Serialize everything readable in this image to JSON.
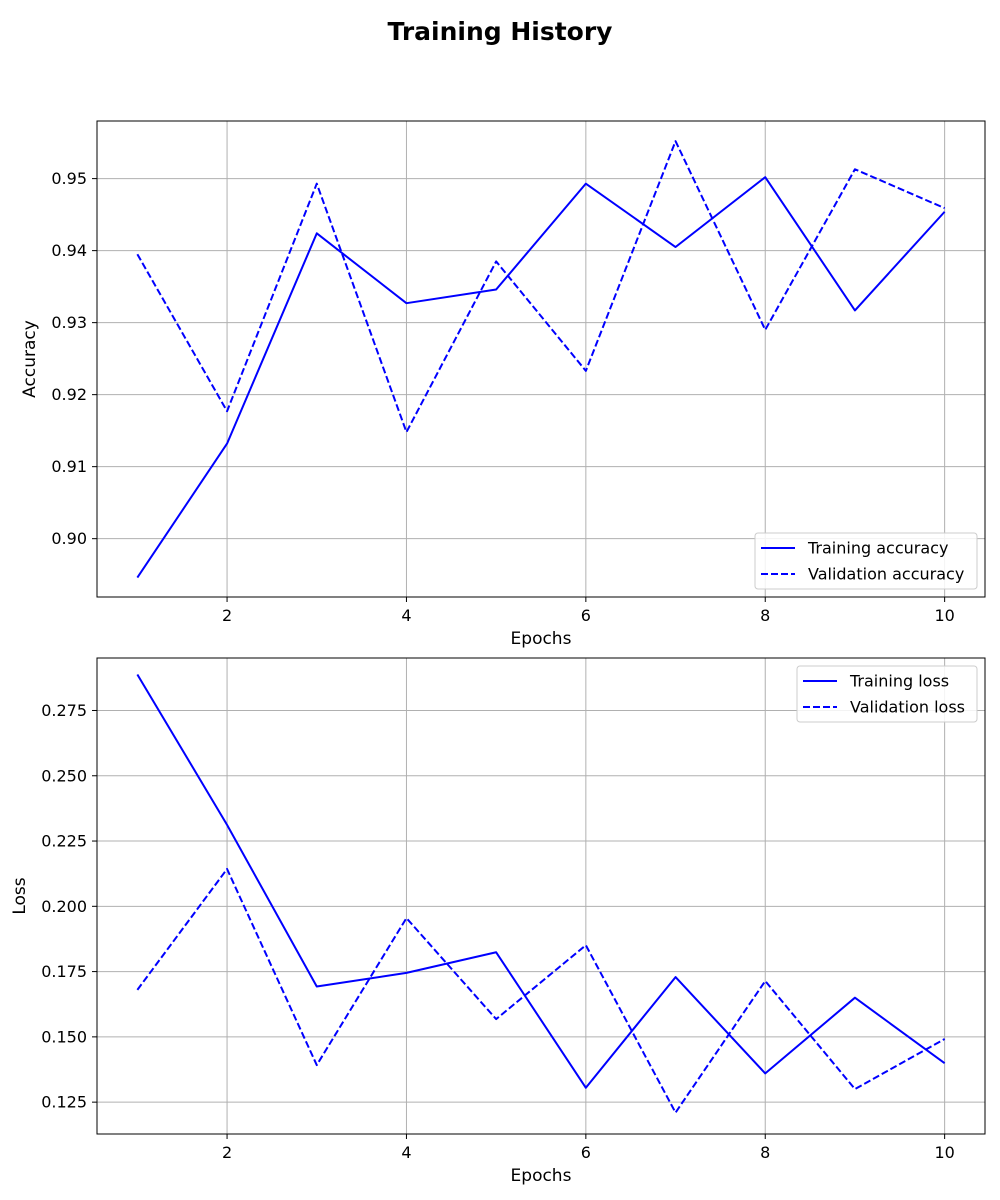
{
  "figure": {
    "title": "Training History"
  },
  "chart_data": [
    {
      "type": "line",
      "x": [
        1,
        2,
        3,
        4,
        5,
        6,
        7,
        8,
        9,
        10
      ],
      "xticks": [
        2,
        4,
        6,
        8,
        10
      ],
      "xlim": [
        0.55,
        10.45
      ],
      "ylim": [
        0.8919,
        0.958
      ],
      "yticks": [
        0.9,
        0.91,
        0.92,
        0.93,
        0.94,
        0.95
      ],
      "ytick_labels": [
        "0.90",
        "0.91",
        "0.92",
        "0.93",
        "0.94",
        "0.95"
      ],
      "xlabel": "Epochs",
      "ylabel": "Accuracy",
      "grid": true,
      "legend_position": "lower-right",
      "series": [
        {
          "name": "Training accuracy",
          "style": "solid",
          "color": "#0000ff",
          "values": [
            0.8946,
            0.9132,
            0.9424,
            0.9327,
            0.9346,
            0.9493,
            0.9405,
            0.9502,
            0.9317,
            0.9454
          ]
        },
        {
          "name": "Validation accuracy",
          "style": "dashed",
          "color": "#0000ff",
          "values": [
            0.9395,
            0.9177,
            0.9493,
            0.9148,
            0.9385,
            0.9233,
            0.9552,
            0.929,
            0.9513,
            0.9459
          ]
        }
      ]
    },
    {
      "type": "line",
      "x": [
        1,
        2,
        3,
        4,
        5,
        6,
        7,
        8,
        9,
        10
      ],
      "xticks": [
        2,
        4,
        6,
        8,
        10
      ],
      "xlim": [
        0.55,
        10.45
      ],
      "ylim": [
        0.1128,
        0.2951
      ],
      "yticks": [
        0.125,
        0.15,
        0.175,
        0.2,
        0.225,
        0.25,
        0.275
      ],
      "ytick_labels": [
        "0.125",
        "0.150",
        "0.175",
        "0.200",
        "0.225",
        "0.250",
        "0.275"
      ],
      "xlabel": "Epochs",
      "ylabel": "Loss",
      "grid": true,
      "legend_position": "upper-right",
      "series": [
        {
          "name": "Training loss",
          "style": "solid",
          "color": "#0000ff",
          "values": [
            0.2888,
            0.2312,
            0.1693,
            0.1745,
            0.1824,
            0.1305,
            0.1729,
            0.136,
            0.165,
            0.1399
          ]
        },
        {
          "name": "Validation loss",
          "style": "dashed",
          "color": "#0000ff",
          "values": [
            0.168,
            0.2143,
            0.1392,
            0.1955,
            0.1568,
            0.1851,
            0.121,
            0.1714,
            0.13,
            0.1492
          ]
        }
      ]
    }
  ]
}
